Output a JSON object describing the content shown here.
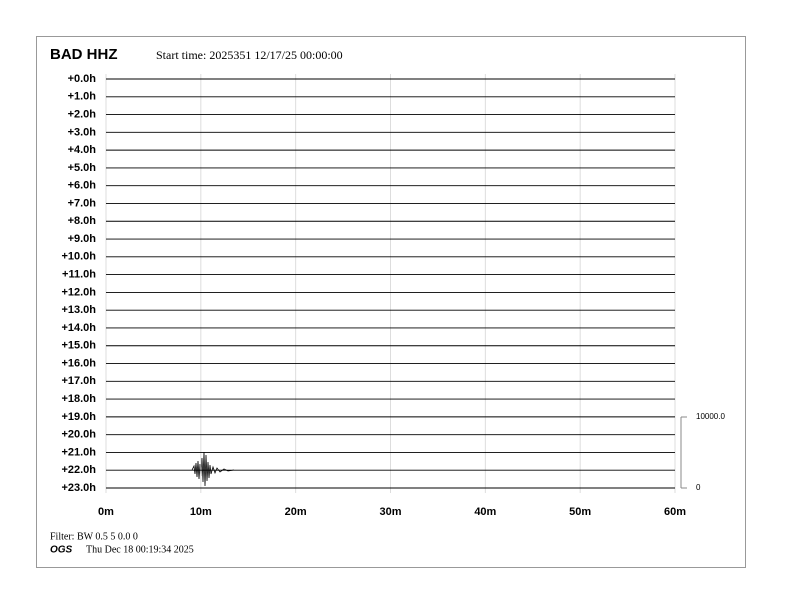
{
  "header": {
    "station": "BAD HHZ",
    "start_time": "Start time: 2025351 12/17/25 00:00:00"
  },
  "chart_data": {
    "type": "helicorder",
    "categories": [
      "+0.0h",
      "+1.0h",
      "+2.0h",
      "+3.0h",
      "+4.0h",
      "+5.0h",
      "+6.0h",
      "+7.0h",
      "+8.0h",
      "+9.0h",
      "+10.0h",
      "+11.0h",
      "+12.0h",
      "+13.0h",
      "+14.0h",
      "+15.0h",
      "+16.0h",
      "+17.0h",
      "+18.0h",
      "+19.0h",
      "+20.0h",
      "+21.0h",
      "+22.0h",
      "+23.0h"
    ],
    "xlim": [
      0,
      60
    ],
    "xticks": [
      {
        "value": 0,
        "label": "0m"
      },
      {
        "value": 10,
        "label": "10m"
      },
      {
        "value": 20,
        "label": "20m"
      },
      {
        "value": 30,
        "label": "30m"
      },
      {
        "value": 40,
        "label": "40m"
      },
      {
        "value": 50,
        "label": "50m"
      },
      {
        "value": 60,
        "label": "60m"
      }
    ],
    "ylim": [
      0,
      10000
    ],
    "yticks": [
      0,
      {
        "value": 10000,
        "label": "10000.0"
      }
    ],
    "grid": true,
    "color": "#000000"
  },
  "footer": {
    "filter": "Filter: BW 0.5 5 0.0 0",
    "agency": "OGS",
    "timestamp": "Thu Dec 18 00:19:34 2025"
  }
}
